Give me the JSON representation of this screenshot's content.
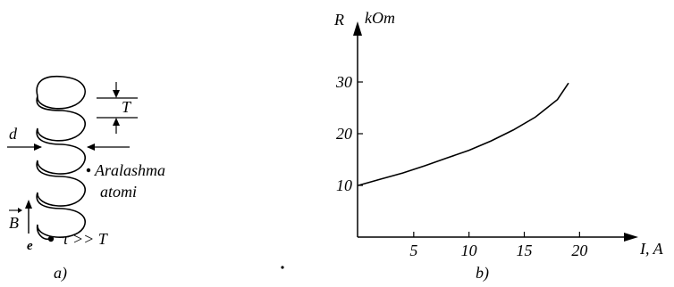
{
  "panel_a": {
    "caption": "a)",
    "label_T": "T",
    "label_d": "d",
    "label_impurity_line1": "Aralashma",
    "label_impurity_line2": "atomi",
    "label_B": "B",
    "label_e": "e",
    "label_tau": "τ >> T"
  },
  "panel_b": {
    "caption": "b)"
  },
  "chart_data": {
    "type": "line",
    "ylabel_symbol": "R",
    "ylabel_unit": "kOm",
    "xlabel": "I, A",
    "xlim": [
      0,
      24
    ],
    "ylim": [
      0,
      35
    ],
    "xticks": [
      5,
      10,
      15,
      20
    ],
    "yticks": [
      10,
      20,
      30
    ],
    "series": [
      {
        "x": [
          0,
          2,
          4,
          6,
          8,
          10,
          12,
          14,
          16,
          18,
          19
        ],
        "y": [
          10,
          11.2,
          12.4,
          13.8,
          15.3,
          16.8,
          18.6,
          20.7,
          23.2,
          26.6,
          29.8
        ]
      }
    ],
    "grid": false
  }
}
